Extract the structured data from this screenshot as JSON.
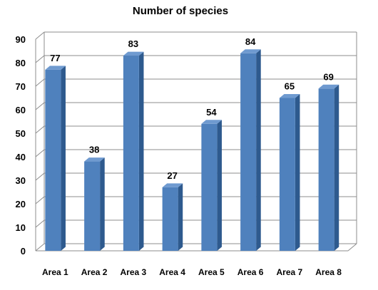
{
  "chart_data": {
    "type": "bar",
    "title": "Number of species",
    "xlabel": "",
    "ylabel": "",
    "categories": [
      "Area 1",
      "Area 2",
      "Area 3",
      "Area 4",
      "Area 5",
      "Area 6",
      "Area 7",
      "Area 8"
    ],
    "values": [
      77,
      38,
      83,
      27,
      54,
      84,
      65,
      69
    ],
    "ylim": [
      0,
      90
    ],
    "yticks": [
      0,
      10,
      20,
      30,
      40,
      50,
      60,
      70,
      80,
      90
    ],
    "grid": true,
    "legend": "none",
    "style": "3d-column",
    "colors": {
      "bar_front": "#4F81BD",
      "bar_side": "#2E5A8E",
      "bar_top": "#6F9AD0",
      "grid": "#8C8C8C",
      "wall": "#FFFFFF"
    }
  }
}
